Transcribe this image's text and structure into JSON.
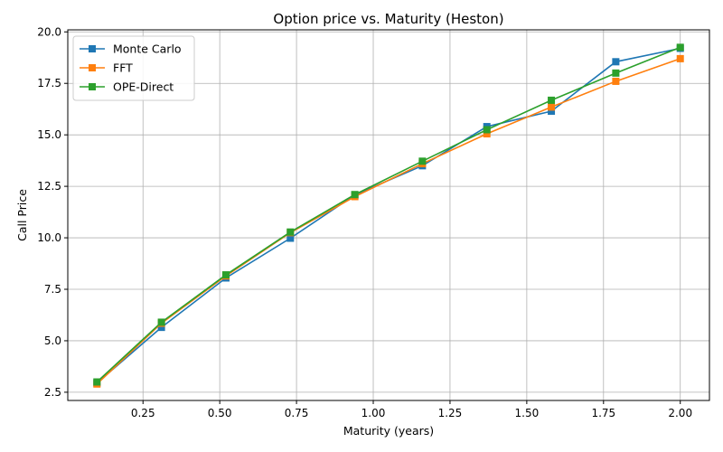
{
  "chart_data": {
    "type": "line",
    "title": "Option price vs. Maturity (Heston)",
    "xlabel": "Maturity (years)",
    "ylabel": "Call Price",
    "xlim": [
      0.005,
      2.095
    ],
    "ylim": [
      2.1,
      20.1
    ],
    "xticks": [
      0.25,
      0.5,
      0.75,
      1.0,
      1.25,
      1.5,
      1.75,
      2.0
    ],
    "xtick_labels": [
      "0.25",
      "0.50",
      "0.75",
      "1.00",
      "1.25",
      "1.50",
      "1.75",
      "2.00"
    ],
    "yticks": [
      2.5,
      5.0,
      7.5,
      10.0,
      12.5,
      15.0,
      17.5,
      20.0
    ],
    "ytick_labels": [
      "2.5",
      "5.0",
      "7.5",
      "10.0",
      "12.5",
      "15.0",
      "17.5",
      "20.0"
    ],
    "grid": true,
    "legend_position": "top-left",
    "x": [
      0.1,
      0.31,
      0.52,
      0.73,
      0.94,
      1.16,
      1.37,
      1.58,
      1.79,
      2.0
    ],
    "series": [
      {
        "name": "Monte Carlo",
        "color": "#1f77b4",
        "marker": "square",
        "values": [
          2.95,
          5.65,
          8.05,
          9.98,
          12.08,
          13.5,
          15.4,
          16.15,
          18.55,
          19.2
        ]
      },
      {
        "name": "FFT",
        "color": "#ff7f0e",
        "marker": "square",
        "values": [
          2.9,
          5.85,
          8.15,
          10.25,
          12.0,
          13.6,
          15.05,
          16.35,
          17.6,
          18.7
        ]
      },
      {
        "name": "OPE-Direct",
        "color": "#2ca02c",
        "marker": "square",
        "values": [
          3.0,
          5.9,
          8.2,
          10.28,
          12.1,
          13.72,
          15.25,
          16.68,
          18.0,
          19.25
        ]
      }
    ]
  }
}
